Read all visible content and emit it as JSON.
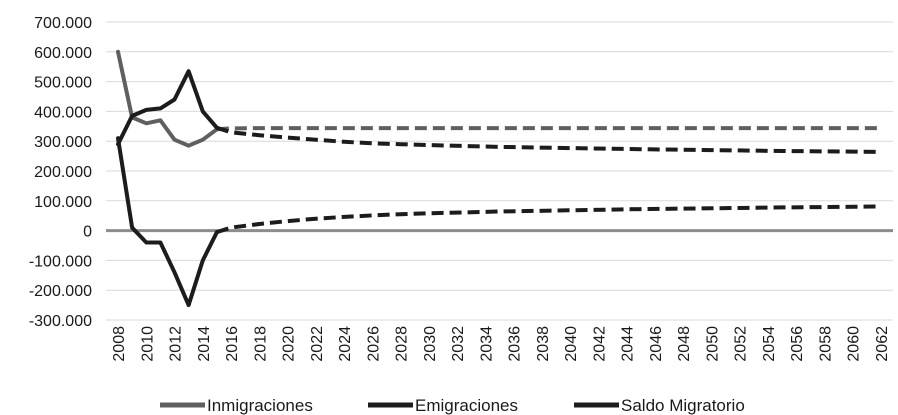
{
  "chart_data": {
    "type": "line",
    "title": "",
    "xlabel": "",
    "ylabel": "",
    "ylim": [
      -300000,
      700000
    ],
    "ytick_step": 100000,
    "y_tick_labels": [
      "700.000",
      "600.000",
      "500.000",
      "400.000",
      "300.000",
      "200.000",
      "100.000",
      "0",
      "-100.000",
      "-200.000",
      "-300.000"
    ],
    "x_tick_labels": [
      "2008",
      "2010",
      "2012",
      "2014",
      "2016",
      "2018",
      "2020",
      "2022",
      "2024",
      "2026",
      "2028",
      "2030",
      "2032",
      "2034",
      "2036",
      "2038",
      "2040",
      "2042",
      "2044",
      "2046",
      "2048",
      "2050",
      "2052",
      "2054",
      "2056",
      "2058",
      "2060",
      "2062"
    ],
    "grid": true,
    "legend": "bottom",
    "observed_last_year": 2015,
    "series": [
      {
        "name": "Inmigraciones",
        "color": "#5f5f5f",
        "observed": {
          "x": [
            2008,
            2009,
            2010,
            2011,
            2012,
            2013,
            2014,
            2015
          ],
          "y": [
            600000,
            380000,
            360000,
            370000,
            305000,
            285000,
            305000,
            340000
          ]
        },
        "projected": {
          "x": [
            2015,
            2016,
            2018,
            2020,
            2022,
            2024,
            2026,
            2028,
            2030,
            2035,
            2040,
            2045,
            2050,
            2055,
            2060,
            2062
          ],
          "y": [
            340000,
            343000,
            344000,
            344000,
            344000,
            344000,
            344000,
            344000,
            344000,
            344000,
            344000,
            344000,
            344000,
            344000,
            344000,
            344000
          ]
        }
      },
      {
        "name": "Emigraciones",
        "color": "#1c1c1c",
        "observed": {
          "x": [
            2008,
            2009,
            2010,
            2011,
            2012,
            2013,
            2014,
            2015
          ],
          "y": [
            290000,
            385000,
            405000,
            410000,
            440000,
            535000,
            400000,
            345000
          ]
        },
        "projected": {
          "x": [
            2015,
            2016,
            2018,
            2020,
            2022,
            2024,
            2026,
            2028,
            2030,
            2035,
            2040,
            2045,
            2050,
            2055,
            2060,
            2062
          ],
          "y": [
            345000,
            330000,
            320000,
            312000,
            305000,
            298000,
            293000,
            290000,
            287000,
            281000,
            277000,
            273000,
            270000,
            267000,
            265000,
            264000
          ]
        }
      },
      {
        "name": "Saldo Migratorio",
        "color": "#1c1c1c",
        "observed": {
          "x": [
            2008,
            2009,
            2010,
            2011,
            2012,
            2013,
            2014,
            2015
          ],
          "y": [
            310000,
            10000,
            -40000,
            -40000,
            -140000,
            -250000,
            -100000,
            -5000
          ]
        },
        "projected": {
          "x": [
            2015,
            2016,
            2018,
            2020,
            2022,
            2024,
            2026,
            2028,
            2030,
            2035,
            2040,
            2045,
            2050,
            2055,
            2060,
            2062
          ],
          "y": [
            -5000,
            10000,
            22000,
            32000,
            40000,
            46000,
            51000,
            55000,
            58000,
            64000,
            68000,
            72000,
            75000,
            78000,
            80000,
            81000
          ]
        }
      }
    ]
  }
}
